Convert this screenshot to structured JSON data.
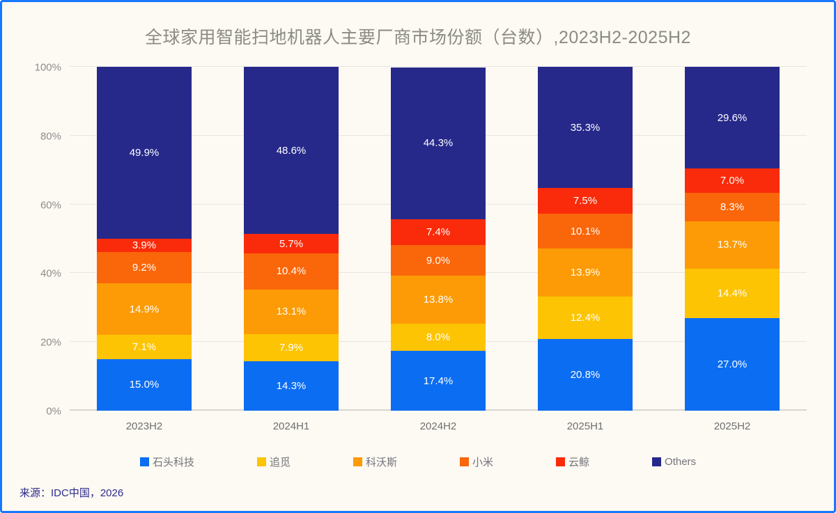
{
  "title": "全球家用智能扫地机器人主要厂商市场份额（台数）,2023H2-2025H2",
  "source": "来源：IDC中国，2026",
  "colors": {
    "background": "#fdf9f3",
    "frame_border": "#1677ff",
    "title_text": "#8b8b84",
    "gridline": "#e8e5e1",
    "axis_line": "#d8d4d0",
    "y_tick_text": "#8e8e8c",
    "x_tick_text": "#6f6f6f",
    "legend_text": "#73737a",
    "source_text": "#2b2b8e",
    "bar_value_text": "#ffffff"
  },
  "chart_data": {
    "type": "bar",
    "stacked": true,
    "title": "全球家用智能扫地机器人主要厂商市场份额（台数）,2023H2-2025H2",
    "xlabel": "",
    "ylabel": "",
    "ylim": [
      0,
      100
    ],
    "yticks": [
      0,
      20,
      40,
      60,
      80,
      100
    ],
    "ytick_labels": [
      "0%",
      "20%",
      "40%",
      "60%",
      "80%",
      "100%"
    ],
    "grid": true,
    "legend_position": "bottom",
    "value_suffix": "%",
    "categories": [
      "2023H2",
      "2024H1",
      "2024H2",
      "2025H1",
      "2025H2"
    ],
    "series": [
      {
        "name": "石头科技",
        "color": "#0b6df2",
        "values": [
          15.0,
          14.3,
          17.4,
          20.8,
          27.0
        ]
      },
      {
        "name": "追觅",
        "color": "#fdc404",
        "values": [
          7.1,
          7.9,
          8.0,
          12.4,
          14.4
        ]
      },
      {
        "name": "科沃斯",
        "color": "#fc9b05",
        "values": [
          14.9,
          13.1,
          13.8,
          13.9,
          13.7
        ]
      },
      {
        "name": "小米",
        "color": "#fa660a",
        "values": [
          9.2,
          10.4,
          9.0,
          10.1,
          8.3
        ]
      },
      {
        "name": "云鲸",
        "color": "#fa2b0a",
        "values": [
          3.9,
          5.7,
          7.4,
          7.5,
          7.0
        ]
      },
      {
        "name": "Others",
        "color": "#26298a",
        "values": [
          49.9,
          48.6,
          44.3,
          35.3,
          29.6
        ]
      }
    ]
  }
}
